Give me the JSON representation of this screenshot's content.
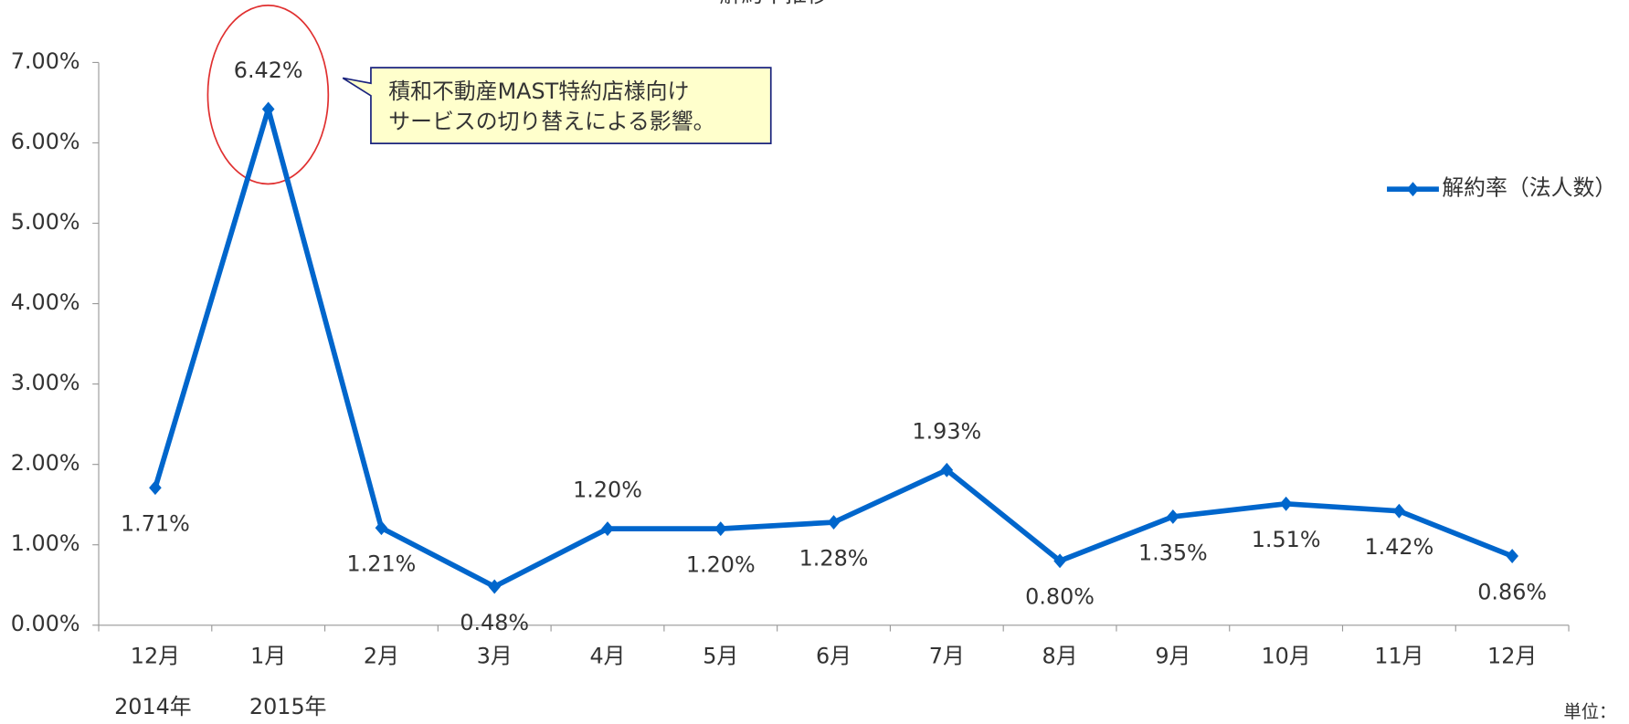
{
  "chart_data": {
    "type": "line",
    "title": "解約率推移",
    "categories": [
      "12月",
      "1月",
      "2月",
      "3月",
      "4月",
      "5月",
      "6月",
      "7月",
      "8月",
      "9月",
      "10月",
      "11月",
      "12月"
    ],
    "series": [
      {
        "name": "解約率（法人数）",
        "color": "#0066cc",
        "values": [
          1.71,
          6.42,
          1.21,
          0.48,
          1.2,
          1.2,
          1.28,
          1.93,
          0.8,
          1.35,
          1.51,
          1.42,
          0.86
        ],
        "value_labels": [
          "1.71%",
          "6.42%",
          "1.21%",
          "0.48%",
          "1.20%",
          "1.20%",
          "1.28%",
          "1.93%",
          "0.80%",
          "1.35%",
          "1.51%",
          "1.42%",
          "0.86%"
        ]
      }
    ],
    "ylim": [
      0,
      7
    ],
    "yticks": [
      {
        "value": 0,
        "label": "0.00%"
      },
      {
        "value": 1,
        "label": "1.00%"
      },
      {
        "value": 2,
        "label": "2.00%"
      },
      {
        "value": 3,
        "label": "3.00%"
      },
      {
        "value": 4,
        "label": "4.00%"
      },
      {
        "value": 5,
        "label": "5.00%"
      },
      {
        "value": 6,
        "label": "6.00%"
      },
      {
        "value": 7,
        "label": "7.00%"
      }
    ],
    "year_labels": [
      "2014年",
      "2015年"
    ],
    "annotation": [
      "積和不動産MAST特約店様向け",
      "サービスの切り替えによる影響。"
    ],
    "unit_label": "単位：",
    "legend": "right"
  }
}
